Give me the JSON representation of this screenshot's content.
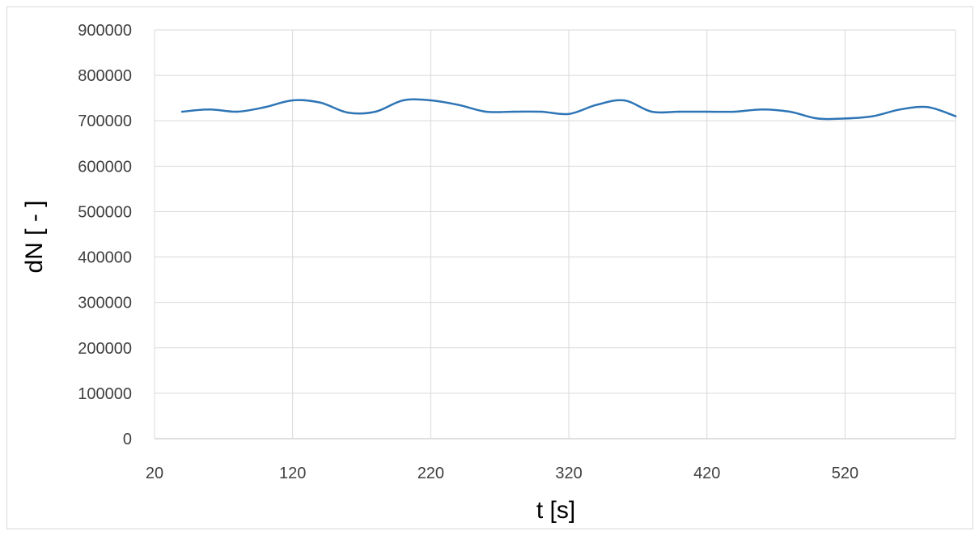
{
  "chart_data": {
    "type": "line",
    "title": "",
    "xlabel": "t [s]",
    "ylabel": "dN [ - ]",
    "xlim": [
      20,
      600
    ],
    "ylim": [
      0,
      900000
    ],
    "x_ticks": [
      20,
      120,
      220,
      320,
      420,
      520
    ],
    "y_ticks": [
      0,
      100000,
      200000,
      300000,
      400000,
      500000,
      600000,
      700000,
      800000,
      900000
    ],
    "grid": true,
    "legend": "none",
    "series": [
      {
        "color": "#2E75B6",
        "x": [
          40,
          60,
          80,
          100,
          120,
          140,
          160,
          180,
          200,
          220,
          240,
          260,
          280,
          300,
          320,
          340,
          360,
          380,
          400,
          420,
          440,
          460,
          480,
          500,
          520,
          540,
          560,
          580,
          600
        ],
        "y": [
          720000,
          725000,
          720000,
          730000,
          745000,
          740000,
          718000,
          720000,
          745000,
          745000,
          735000,
          720000,
          720000,
          720000,
          715000,
          735000,
          745000,
          720000,
          720000,
          720000,
          720000,
          725000,
          720000,
          705000,
          705000,
          710000,
          725000,
          730000,
          710000
        ]
      }
    ]
  }
}
